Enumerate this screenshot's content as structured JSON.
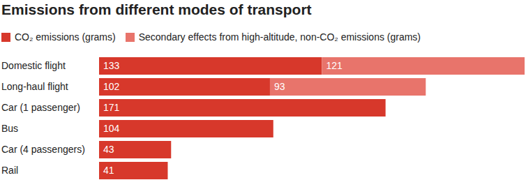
{
  "chart_data": {
    "type": "bar",
    "title": "Emissions from different modes of transport",
    "orientation": "horizontal",
    "stacked": true,
    "data_labels": true,
    "legend": "top-left",
    "tick_labels": "y",
    "grid": false,
    "categories": [
      "Domestic flight",
      "Long-haul flight",
      "Car (1 passenger)",
      "Bus",
      "Car (4 passengers)",
      "Rail"
    ],
    "xlim": [
      0,
      254
    ],
    "series": [
      {
        "name": "CO₂ emissions (grams)",
        "color": "#d7382b",
        "values": [
          133,
          102,
          171,
          104,
          43,
          41
        ]
      },
      {
        "name": "Secondary effects from high-altitude, non-CO₂ emissions (grams)",
        "color": "#e8746b",
        "values": [
          121,
          93,
          null,
          null,
          null,
          null
        ]
      }
    ]
  }
}
